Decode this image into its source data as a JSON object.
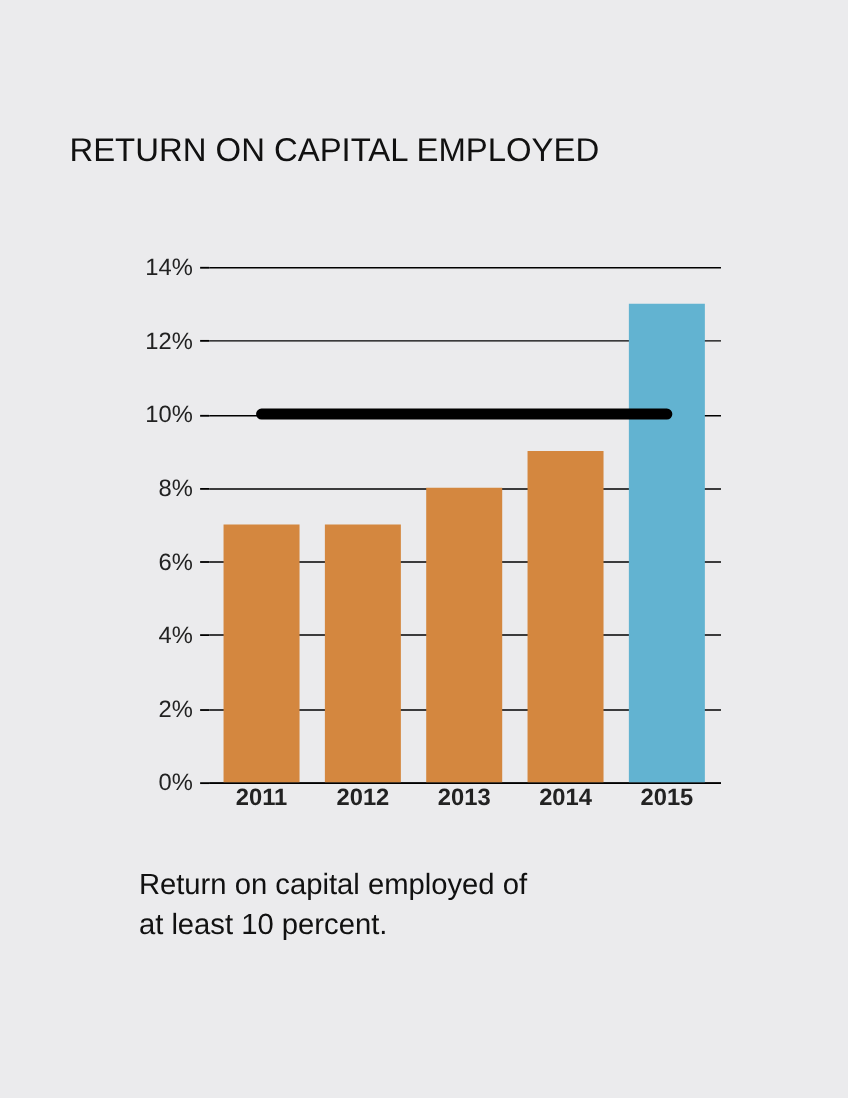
{
  "chart_data": {
    "type": "bar",
    "title": "RETURN ON CAPITAL EMPLOYED",
    "categories": [
      "2011",
      "2012",
      "2013",
      "2014",
      "2015"
    ],
    "values": [
      7,
      7,
      8,
      9,
      13
    ],
    "colors": [
      "#d4873f",
      "#d4873f",
      "#d4873f",
      "#d4873f",
      "#62b3d1"
    ],
    "ylim": [
      0,
      14
    ],
    "yticks": [
      {
        "value": 0,
        "label": "0%"
      },
      {
        "value": 2,
        "label": "2%"
      },
      {
        "value": 4,
        "label": "4%"
      },
      {
        "value": 6,
        "label": "6%"
      },
      {
        "value": 8,
        "label": "8%"
      },
      {
        "value": 10,
        "label": "10%"
      },
      {
        "value": 12,
        "label": "12%"
      },
      {
        "value": 14,
        "label": "14%"
      }
    ],
    "grid": "y",
    "ref_lines": [
      {
        "axis": "y",
        "value": 10,
        "color": "#000000"
      }
    ],
    "annotations": [
      "Return on capital employed of at least 10 percent."
    ]
  }
}
